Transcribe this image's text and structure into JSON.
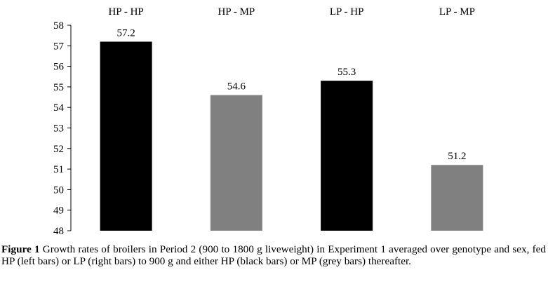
{
  "chart_data": {
    "type": "bar",
    "categories": [
      "HP - HP",
      "HP - MP",
      "LP - HP",
      "LP - MP"
    ],
    "values": [
      57.2,
      54.6,
      55.3,
      51.2
    ],
    "colors": [
      "#000000",
      "#808080",
      "#000000",
      "#808080"
    ],
    "data_labels": [
      "57.2",
      "54.6",
      "55.3",
      "51.2"
    ],
    "ylim": [
      48,
      58
    ],
    "yticks": [
      "48",
      "49",
      "50",
      "51",
      "52",
      "53",
      "54",
      "55",
      "56",
      "57",
      "58"
    ],
    "category_axis_position": "top",
    "grid": false,
    "legend": "none",
    "title": "",
    "xlabel": "",
    "ylabel": ""
  },
  "caption": {
    "label": "Figure 1",
    "text": " Growth rates of broilers in Period 2 (900 to 1800 g liveweight) in Experiment 1 averaged over genotype and sex, fed HP (left bars) or LP (right bars) to 900 g and either HP (black bars) or MP (grey bars) thereafter."
  }
}
